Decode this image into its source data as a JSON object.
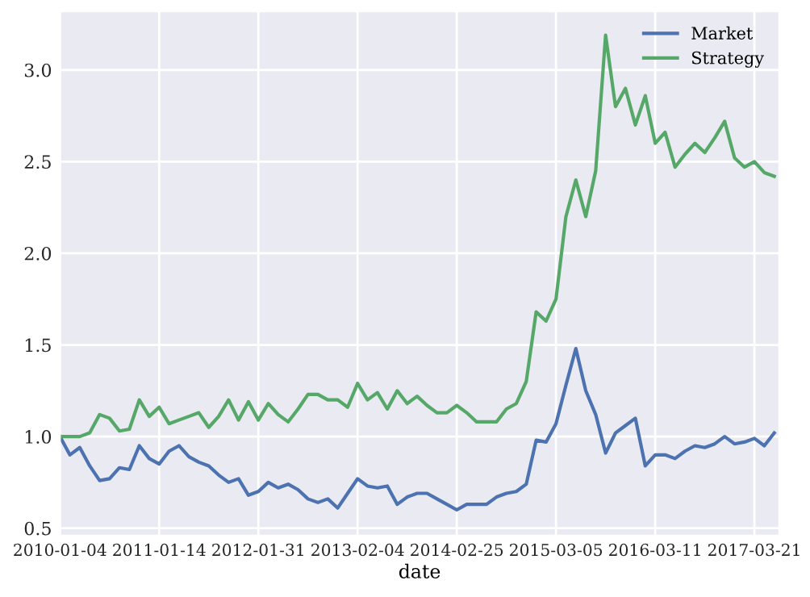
{
  "chart_data": {
    "type": "line",
    "xlabel": "date",
    "categories": [
      "2010-01-04",
      null,
      null,
      null,
      null,
      null,
      null,
      null,
      null,
      null,
      "2011-01-14",
      null,
      null,
      null,
      null,
      null,
      null,
      null,
      null,
      null,
      "2012-01-31",
      null,
      null,
      null,
      null,
      null,
      null,
      null,
      null,
      null,
      "2013-02-04",
      null,
      null,
      null,
      null,
      null,
      null,
      null,
      null,
      null,
      "2014-02-25",
      null,
      null,
      null,
      null,
      null,
      null,
      null,
      null,
      null,
      "2015-03-05",
      null,
      null,
      null,
      null,
      null,
      null,
      null,
      null,
      null,
      "2016-03-11",
      null,
      null,
      null,
      null,
      null,
      null,
      null,
      null,
      null,
      "2017-03-21",
      null,
      null
    ],
    "series": [
      {
        "name": "Market",
        "color": "#4c72b0",
        "values": [
          1.0,
          0.9,
          0.94,
          0.84,
          0.76,
          0.77,
          0.83,
          0.82,
          0.95,
          0.88,
          0.85,
          0.92,
          0.95,
          0.89,
          0.86,
          0.84,
          0.79,
          0.75,
          0.77,
          0.68,
          0.7,
          0.75,
          0.72,
          0.74,
          0.71,
          0.66,
          0.64,
          0.66,
          0.61,
          0.69,
          0.77,
          0.73,
          0.72,
          0.73,
          0.63,
          0.67,
          0.69,
          0.69,
          0.66,
          0.63,
          0.6,
          0.63,
          0.63,
          0.63,
          0.67,
          0.69,
          0.7,
          0.74,
          0.98,
          0.97,
          1.07,
          1.28,
          1.48,
          1.25,
          1.12,
          0.91,
          1.02,
          1.06,
          1.1,
          0.84,
          0.9,
          0.9,
          0.88,
          0.92,
          0.95,
          0.94,
          0.96,
          1.0,
          0.96,
          0.97,
          0.99,
          0.95,
          1.02
        ]
      },
      {
        "name": "Strategy",
        "color": "#55a868",
        "values": [
          1.0,
          1.0,
          1.0,
          1.02,
          1.12,
          1.1,
          1.03,
          1.04,
          1.2,
          1.11,
          1.16,
          1.07,
          1.09,
          1.11,
          1.13,
          1.05,
          1.11,
          1.2,
          1.09,
          1.19,
          1.09,
          1.18,
          1.12,
          1.08,
          1.15,
          1.23,
          1.23,
          1.2,
          1.2,
          1.16,
          1.29,
          1.2,
          1.24,
          1.15,
          1.25,
          1.18,
          1.22,
          1.17,
          1.13,
          1.13,
          1.17,
          1.13,
          1.08,
          1.08,
          1.08,
          1.15,
          1.18,
          1.3,
          1.68,
          1.63,
          1.75,
          2.2,
          2.4,
          2.2,
          2.45,
          3.19,
          2.8,
          2.9,
          2.7,
          2.86,
          2.6,
          2.66,
          2.47,
          2.54,
          2.6,
          2.55,
          2.63,
          2.72,
          2.52,
          2.47,
          2.5,
          2.44,
          2.42
        ]
      }
    ],
    "ylim": [
      0.46,
      3.32
    ],
    "yticks": [
      {
        "value": 0.5,
        "label": "0.5"
      },
      {
        "value": 1.0,
        "label": "1.0"
      },
      {
        "value": 1.5,
        "label": "1.5"
      },
      {
        "value": 2.0,
        "label": "2.0"
      },
      {
        "value": 2.5,
        "label": "2.5"
      },
      {
        "value": 3.0,
        "label": "3.0"
      }
    ],
    "grid": true,
    "legend": "top right",
    "line_style": "solid",
    "marker": "none"
  }
}
